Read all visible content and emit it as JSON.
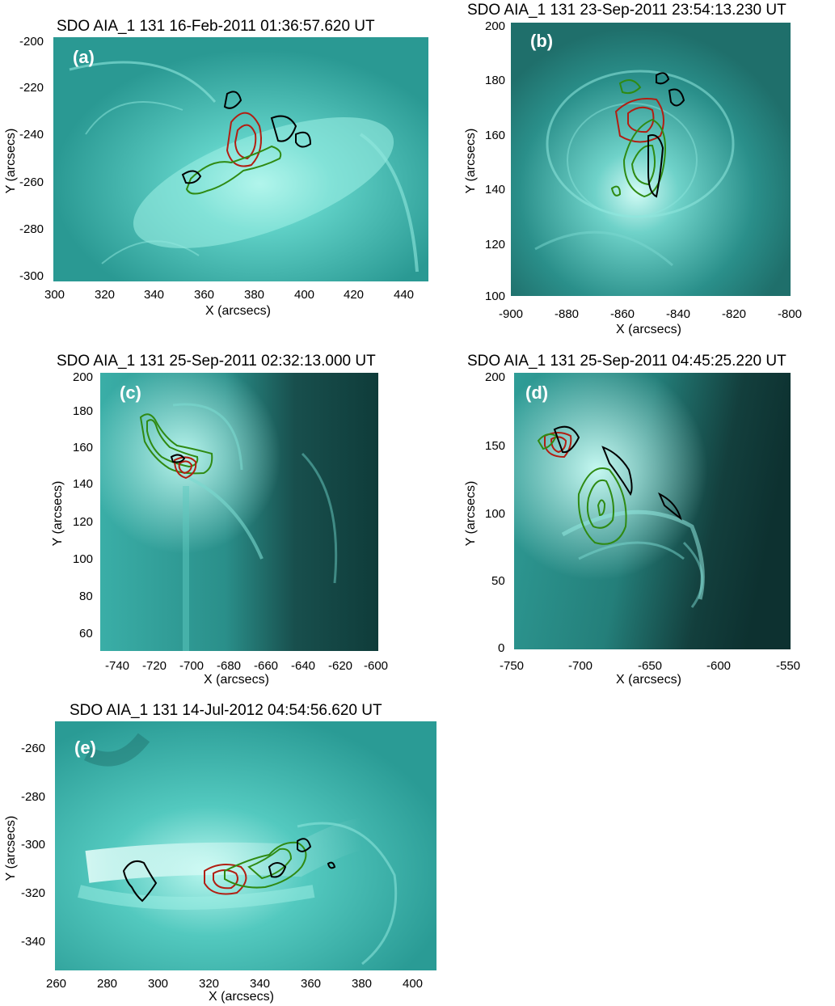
{
  "colors": {
    "bg_dark": "#0f4a48",
    "bg_mid": "#2aa6a0",
    "bg_bright": "#bff7f0",
    "contour_red": "#b21e12",
    "contour_green": "#2f8a12",
    "contour_black": "#000000",
    "panel_letter": "#ffffff"
  },
  "panels": [
    {
      "id": "a",
      "title": "SDO AIA_1 131 16-Feb-2011 01:36:57.620 UT",
      "letter": "(a)",
      "xlabel": "X (arcsecs)",
      "ylabel": "Y (arcsecs)",
      "xticks": [
        "300",
        "320",
        "340",
        "360",
        "380",
        "400",
        "420",
        "440"
      ],
      "yticks": [
        "-200",
        "-220",
        "-240",
        "-260",
        "-280",
        "-300"
      ]
    },
    {
      "id": "b",
      "title": "SDO AIA_1 131 23-Sep-2011 23:54:13.230 UT",
      "letter": "(b)",
      "xlabel": "X (arcsecs)",
      "ylabel": "Y (arcsecs)",
      "xticks": [
        "-900",
        "-880",
        "-860",
        "-840",
        "-820",
        "-800"
      ],
      "yticks": [
        "200",
        "180",
        "160",
        "140",
        "120",
        "100"
      ]
    },
    {
      "id": "c",
      "title": "SDO AIA_1 131 25-Sep-2011 02:32:13.000 UT",
      "letter": "(c)",
      "xlabel": "X (arcsecs)",
      "ylabel": "Y (arcsecs)",
      "xticks": [
        "-740",
        "-720",
        "-700",
        "-680",
        "-660",
        "-640",
        "-620",
        "-600"
      ],
      "yticks": [
        "200",
        "180",
        "160",
        "140",
        "120",
        "100",
        "80",
        "60"
      ]
    },
    {
      "id": "d",
      "title": "SDO AIA_1 131 25-Sep-2011 04:45:25.220 UT",
      "letter": "(d)",
      "xlabel": "X (arcsecs)",
      "ylabel": "Y (arcsecs)",
      "xticks": [
        "-750",
        "-700",
        "-650",
        "-600",
        "-550"
      ],
      "yticks": [
        "200",
        "150",
        "100",
        "50",
        "0"
      ]
    },
    {
      "id": "e",
      "title": "SDO AIA_1 131 14-Jul-2012 04:54:56.620 UT",
      "letter": "(e)",
      "xlabel": "X (arcsecs)",
      "ylabel": "Y (arcsecs)",
      "xticks": [
        "260",
        "280",
        "300",
        "320",
        "340",
        "360",
        "380",
        "400"
      ],
      "yticks": [
        "-260",
        "-280",
        "-300",
        "-320",
        "-340"
      ]
    }
  ]
}
